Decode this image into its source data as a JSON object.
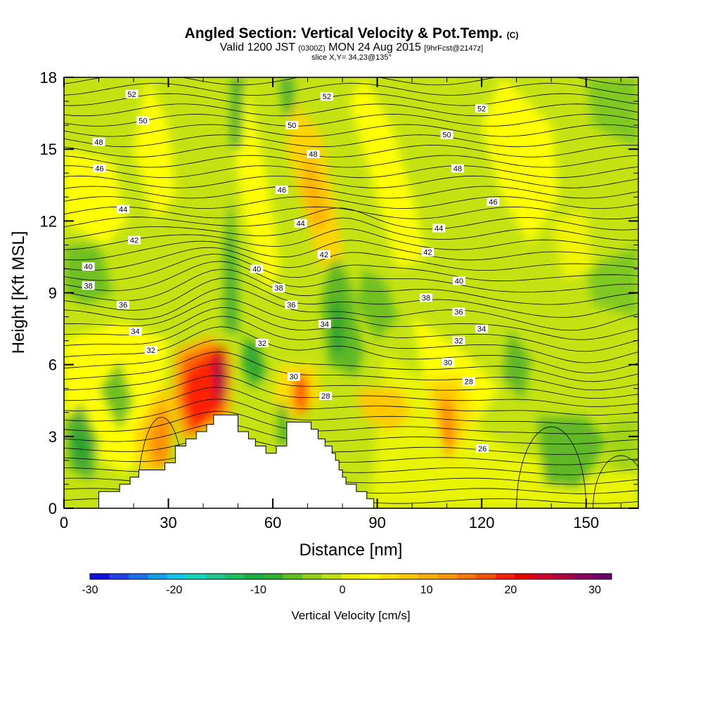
{
  "title": {
    "main": "Angled Section: Vertical Velocity & Pot.Temp.",
    "unit": "(C)"
  },
  "subtitle": {
    "valid": "Valid 1200 JST",
    "utc": "(0300Z)",
    "date": "MON 24 Aug 2015",
    "forecast": "[9hrFcst@2147z]"
  },
  "slice": "slice X,Y= 34,23@135°",
  "chart_data": {
    "type": "heatmap",
    "xlabel": "Distance [nm]",
    "ylabel": "Height [Kft MSL]",
    "xlim": [
      0,
      165
    ],
    "ylim": [
      0,
      18
    ],
    "xticks": [
      "0",
      "30",
      "60",
      "90",
      "120",
      "150"
    ],
    "yticks": [
      "0",
      "3",
      "6",
      "9",
      "12",
      "15",
      "18"
    ],
    "colorbar": {
      "label": "Vertical Velocity [cm/s]",
      "range": [
        -30,
        32
      ],
      "ticks": [
        "-30",
        "-20",
        "-10",
        "0",
        "10",
        "20",
        "30"
      ],
      "colors": [
        "#1010e0",
        "#1f40ee",
        "#1f70f0",
        "#10a0f0",
        "#10c8e8",
        "#10d8c0",
        "#20c890",
        "#20c060",
        "#18b040",
        "#30b030",
        "#60c020",
        "#90d010",
        "#c0e010",
        "#e8f000",
        "#ffff00",
        "#ffe000",
        "#ffc800",
        "#ffb000",
        "#ff9800",
        "#ff7800",
        "#ff5000",
        "#ff2000",
        "#e80000",
        "#d00030",
        "#b00040",
        "#900060",
        "#700070"
      ]
    },
    "theta_contour_labels": [
      {
        "label": "52",
        "x": 19.5,
        "y": 17.3
      },
      {
        "label": "50",
        "x": 22.7,
        "y": 16.2
      },
      {
        "label": "48",
        "x": 10.0,
        "y": 15.3
      },
      {
        "label": "46",
        "x": 10.2,
        "y": 14.2
      },
      {
        "label": "44",
        "x": 17.0,
        "y": 12.5
      },
      {
        "label": "42",
        "x": 20.2,
        "y": 11.2
      },
      {
        "label": "40",
        "x": 7.0,
        "y": 10.1
      },
      {
        "label": "38",
        "x": 7.0,
        "y": 9.3
      },
      {
        "label": "36",
        "x": 17.0,
        "y": 8.5
      },
      {
        "label": "34",
        "x": 20.5,
        "y": 7.4
      },
      {
        "label": "32",
        "x": 25.0,
        "y": 6.6
      },
      {
        "label": "52",
        "x": 75.5,
        "y": 17.2
      },
      {
        "label": "50",
        "x": 65.5,
        "y": 16.0
      },
      {
        "label": "48",
        "x": 71.6,
        "y": 14.8
      },
      {
        "label": "46",
        "x": 62.6,
        "y": 13.3
      },
      {
        "label": "44",
        "x": 68.0,
        "y": 11.9
      },
      {
        "label": "42",
        "x": 74.7,
        "y": 10.6
      },
      {
        "label": "40",
        "x": 55.4,
        "y": 10.0
      },
      {
        "label": "38",
        "x": 61.7,
        "y": 9.2
      },
      {
        "label": "36",
        "x": 65.3,
        "y": 8.5
      },
      {
        "label": "34",
        "x": 74.9,
        "y": 7.7
      },
      {
        "label": "32",
        "x": 56.9,
        "y": 6.9
      },
      {
        "label": "30",
        "x": 66.0,
        "y": 5.5
      },
      {
        "label": "28",
        "x": 75.2,
        "y": 4.7
      },
      {
        "label": "52",
        "x": 120.0,
        "y": 16.7
      },
      {
        "label": "50",
        "x": 110.0,
        "y": 15.6
      },
      {
        "label": "48",
        "x": 113.1,
        "y": 14.2
      },
      {
        "label": "46",
        "x": 123.3,
        "y": 12.8
      },
      {
        "label": "44",
        "x": 107.7,
        "y": 11.7
      },
      {
        "label": "42",
        "x": 104.5,
        "y": 10.7
      },
      {
        "label": "40",
        "x": 113.5,
        "y": 9.5
      },
      {
        "label": "38",
        "x": 104.0,
        "y": 8.8
      },
      {
        "label": "36",
        "x": 113.4,
        "y": 8.2
      },
      {
        "label": "34",
        "x": 120.0,
        "y": 7.5
      },
      {
        "label": "32",
        "x": 113.4,
        "y": 7.0
      },
      {
        "label": "30",
        "x": 110.3,
        "y": 6.1
      },
      {
        "label": "28",
        "x": 116.3,
        "y": 5.3
      },
      {
        "label": "26",
        "x": 120.2,
        "y": 2.5
      }
    ],
    "terrain": [
      [
        0,
        0
      ],
      [
        10,
        0
      ],
      [
        10,
        0.7
      ],
      [
        16,
        0.7
      ],
      [
        16,
        1.0
      ],
      [
        19,
        1.0
      ],
      [
        19,
        1.3
      ],
      [
        21.5,
        1.3
      ],
      [
        21.5,
        1.6
      ],
      [
        29,
        1.6
      ],
      [
        29,
        1.9
      ],
      [
        32,
        1.9
      ],
      [
        32,
        2.6
      ],
      [
        35,
        2.6
      ],
      [
        35,
        2.9
      ],
      [
        38,
        2.9
      ],
      [
        38,
        3.2
      ],
      [
        41,
        3.2
      ],
      [
        41,
        3.5
      ],
      [
        43,
        3.5
      ],
      [
        43,
        3.9
      ],
      [
        50,
        3.9
      ],
      [
        50,
        3.2
      ],
      [
        53,
        3.2
      ],
      [
        53,
        2.9
      ],
      [
        55,
        2.9
      ],
      [
        55,
        2.6
      ],
      [
        58,
        2.6
      ],
      [
        58,
        2.3
      ],
      [
        61,
        2.3
      ],
      [
        61,
        2.6
      ],
      [
        64,
        2.6
      ],
      [
        64,
        3.6
      ],
      [
        71,
        3.6
      ],
      [
        71,
        3.3
      ],
      [
        73,
        3.3
      ],
      [
        73,
        2.9
      ],
      [
        75,
        2.9
      ],
      [
        75,
        2.6
      ],
      [
        77,
        2.6
      ],
      [
        77,
        2.3
      ],
      [
        78,
        2.3
      ],
      [
        78,
        2.0
      ],
      [
        79,
        2.0
      ],
      [
        79,
        1.6
      ],
      [
        80,
        1.6
      ],
      [
        80,
        1.3
      ],
      [
        81,
        1.3
      ],
      [
        81,
        1.0
      ],
      [
        84,
        1.0
      ],
      [
        84,
        0.7
      ],
      [
        87,
        0.7
      ],
      [
        87,
        0.4
      ],
      [
        89,
        0.4
      ],
      [
        89,
        0
      ]
    ]
  }
}
